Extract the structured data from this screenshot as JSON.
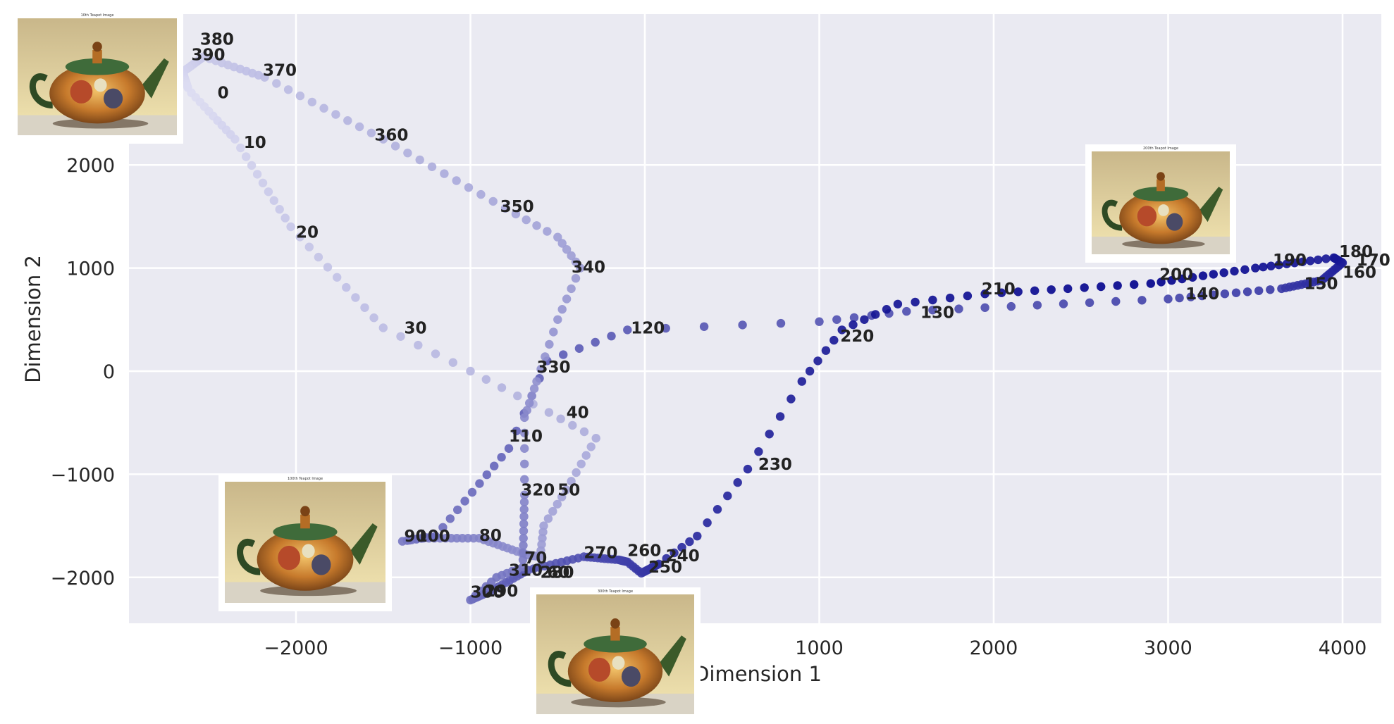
{
  "chart_data": {
    "type": "scatter",
    "title": "",
    "xlabel": "Dimension 1",
    "ylabel": "Dimension 2",
    "xlim": [
      -2900,
      4300
    ],
    "ylim": [
      -2450,
      3500
    ],
    "xticks": [
      -2000,
      -1000,
      0,
      1000,
      2000,
      3000,
      4000
    ],
    "xtick_labels": [
      "−2000",
      "−1000",
      "0",
      "1000",
      "2000",
      "3000",
      "4000"
    ],
    "yticks": [
      -2000,
      -1000,
      0,
      1000,
      2000
    ],
    "ytick_labels": [
      "−2000",
      "−1000",
      "0",
      "1000",
      "2000"
    ],
    "grid": true,
    "frame_count": 400,
    "color_map": {
      "start": "#dcdcf2",
      "end": "#00008b"
    },
    "path_keypoints": [
      {
        "frame": 0,
        "x": -2600,
        "y": 2700
      },
      {
        "frame": 10,
        "x": -2350,
        "y": 2250
      },
      {
        "frame": 20,
        "x": -2030,
        "y": 1400
      },
      {
        "frame": 30,
        "x": -1500,
        "y": 420
      },
      {
        "frame": 35,
        "x": -1000,
        "y": 0
      },
      {
        "frame": 40,
        "x": -550,
        "y": -400
      },
      {
        "frame": 44,
        "x": -280,
        "y": -650
      },
      {
        "frame": 50,
        "x": -450,
        "y": -1150
      },
      {
        "frame": 55,
        "x": -580,
        "y": -1500
      },
      {
        "frame": 60,
        "x": -600,
        "y": -1800
      },
      {
        "frame": 70,
        "x": -680,
        "y": -1780
      },
      {
        "frame": 80,
        "x": -950,
        "y": -1620
      },
      {
        "frame": 90,
        "x": -1270,
        "y": -1620
      },
      {
        "frame": 93,
        "x": -1390,
        "y": -1650
      },
      {
        "frame": 100,
        "x": -1200,
        "y": -1600
      },
      {
        "frame": 110,
        "x": -780,
        "y": -750
      },
      {
        "frame": 115,
        "x": -560,
        "y": 100
      },
      {
        "frame": 120,
        "x": -100,
        "y": 400
      },
      {
        "frame": 125,
        "x": 1000,
        "y": 480
      },
      {
        "frame": 130,
        "x": 1500,
        "y": 580
      },
      {
        "frame": 140,
        "x": 3000,
        "y": 700
      },
      {
        "frame": 150,
        "x": 3650,
        "y": 800
      },
      {
        "frame": 160,
        "x": 3880,
        "y": 880
      },
      {
        "frame": 170,
        "x": 4000,
        "y": 1050
      },
      {
        "frame": 180,
        "x": 3950,
        "y": 1100
      },
      {
        "frame": 190,
        "x": 3500,
        "y": 1000
      },
      {
        "frame": 200,
        "x": 2900,
        "y": 850
      },
      {
        "frame": 210,
        "x": 1950,
        "y": 750
      },
      {
        "frame": 215,
        "x": 1450,
        "y": 650
      },
      {
        "frame": 220,
        "x": 1130,
        "y": 400
      },
      {
        "frame": 225,
        "x": 900,
        "y": -100
      },
      {
        "frame": 230,
        "x": 590,
        "y": -950
      },
      {
        "frame": 235,
        "x": 300,
        "y": -1600
      },
      {
        "frame": 240,
        "x": 80,
        "y": -1870
      },
      {
        "frame": 250,
        "x": -20,
        "y": -1960
      },
      {
        "frame": 255,
        "x": -100,
        "y": -1850
      },
      {
        "frame": 260,
        "x": -150,
        "y": -1830
      },
      {
        "frame": 270,
        "x": -350,
        "y": -1800
      },
      {
        "frame": 280,
        "x": -670,
        "y": -1930
      },
      {
        "frame": 290,
        "x": -880,
        "y": -2130
      },
      {
        "frame": 300,
        "x": -1000,
        "y": -2220
      },
      {
        "frame": 305,
        "x": -850,
        "y": -2000
      },
      {
        "frame": 310,
        "x": -700,
        "y": -1900
      },
      {
        "frame": 320,
        "x": -690,
        "y": -1200
      },
      {
        "frame": 325,
        "x": -690,
        "y": -450
      },
      {
        "frame": 330,
        "x": -620,
        "y": -100
      },
      {
        "frame": 335,
        "x": -500,
        "y": 500
      },
      {
        "frame": 340,
        "x": -370,
        "y": 1000
      },
      {
        "frame": 345,
        "x": -500,
        "y": 1300
      },
      {
        "frame": 350,
        "x": -800,
        "y": 1580
      },
      {
        "frame": 360,
        "x": -1500,
        "y": 2250
      },
      {
        "frame": 370,
        "x": -2180,
        "y": 2850
      },
      {
        "frame": 380,
        "x": -2530,
        "y": 3050
      },
      {
        "frame": 390,
        "x": -2650,
        "y": 2900
      },
      {
        "frame": 399,
        "x": -2620,
        "y": 2750
      }
    ],
    "annotations": [
      {
        "text": "0",
        "x": -2450,
        "y": 2700
      },
      {
        "text": "10",
        "x": -2300,
        "y": 2220
      },
      {
        "text": "20",
        "x": -2000,
        "y": 1350
      },
      {
        "text": "30",
        "x": -1380,
        "y": 420
      },
      {
        "text": "40",
        "x": -450,
        "y": -400
      },
      {
        "text": "50",
        "x": -500,
        "y": -1150
      },
      {
        "text": "60",
        "x": -560,
        "y": -1950
      },
      {
        "text": "70",
        "x": -690,
        "y": -1810
      },
      {
        "text": "80",
        "x": -950,
        "y": -1590
      },
      {
        "text": "90",
        "x": -1380,
        "y": -1600
      },
      {
        "text": "100",
        "x": -1310,
        "y": -1600
      },
      {
        "text": "110",
        "x": -780,
        "y": -630
      },
      {
        "text": "120",
        "x": -80,
        "y": 420
      },
      {
        "text": "130",
        "x": 1580,
        "y": 570
      },
      {
        "text": "140",
        "x": 3100,
        "y": 750
      },
      {
        "text": "150",
        "x": 3780,
        "y": 850
      },
      {
        "text": "160",
        "x": 4000,
        "y": 960
      },
      {
        "text": "170",
        "x": 4080,
        "y": 1080
      },
      {
        "text": "180",
        "x": 3980,
        "y": 1160
      },
      {
        "text": "190",
        "x": 3600,
        "y": 1080
      },
      {
        "text": "200",
        "x": 2950,
        "y": 940
      },
      {
        "text": "210",
        "x": 1930,
        "y": 800
      },
      {
        "text": "220",
        "x": 1120,
        "y": 340
      },
      {
        "text": "230",
        "x": 650,
        "y": -900
      },
      {
        "text": "240",
        "x": 120,
        "y": -1790
      },
      {
        "text": "250",
        "x": 20,
        "y": -1900
      },
      {
        "text": "260",
        "x": -100,
        "y": -1740
      },
      {
        "text": "270",
        "x": -350,
        "y": -1760
      },
      {
        "text": "280",
        "x": -600,
        "y": -1950
      },
      {
        "text": "290",
        "x": -920,
        "y": -2130
      },
      {
        "text": "300",
        "x": -1000,
        "y": -2140
      },
      {
        "text": "310",
        "x": -780,
        "y": -1930
      },
      {
        "text": "320",
        "x": -710,
        "y": -1150
      },
      {
        "text": "330",
        "x": -620,
        "y": 40
      },
      {
        "text": "340",
        "x": -420,
        "y": 1010
      },
      {
        "text": "350",
        "x": -830,
        "y": 1600
      },
      {
        "text": "360",
        "x": -1550,
        "y": 2290
      },
      {
        "text": "370",
        "x": -2190,
        "y": 2920
      },
      {
        "text": "380",
        "x": -2550,
        "y": 3220
      },
      {
        "text": "390",
        "x": -2600,
        "y": 3070
      }
    ]
  },
  "thumbnails": [
    {
      "title": "10th Teapot Image"
    },
    {
      "title": "100th Teapot Image"
    },
    {
      "title": "200th Teapot Image"
    },
    {
      "title": "300th Teapot Image"
    }
  ]
}
